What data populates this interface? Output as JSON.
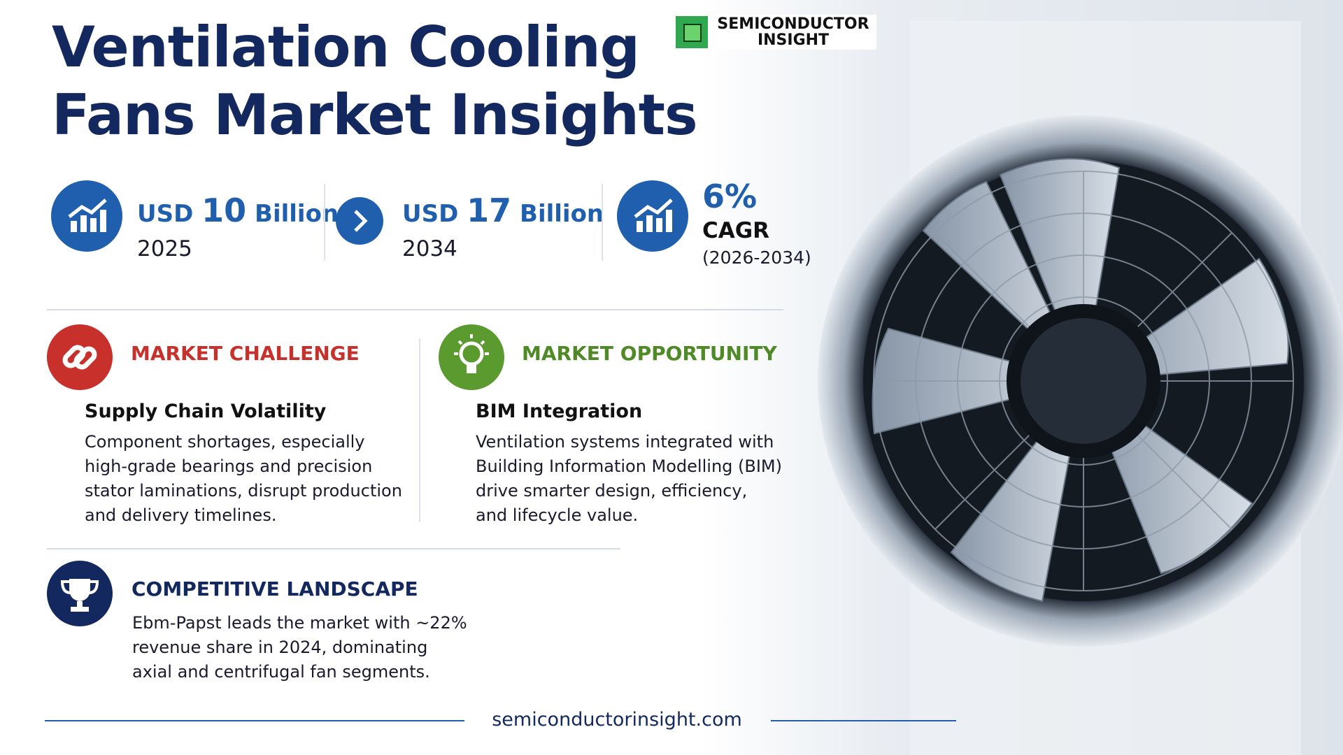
{
  "header": {
    "title_lines": [
      "Ventilation Cooling",
      "Fans Market Insights"
    ],
    "logo_lines": [
      "SEMICONDUCTOR",
      "INSIGHT"
    ]
  },
  "stats": [
    {
      "prefix": "USD",
      "amount": "10",
      "unit": "Billion",
      "year": "2025"
    },
    {
      "prefix": "USD",
      "amount": "17",
      "unit": "Billion",
      "year": "2034"
    },
    {
      "value": "6%",
      "label": "CAGR",
      "period": "(2026-2034)"
    }
  ],
  "sections": {
    "challenge": {
      "label": "MARKET CHALLENGE",
      "heading": "Supply Chain Volatility",
      "body_lines": [
        "Component shortages, especially",
        "high-grade bearings and precision",
        "stator laminations, disrupt production",
        "and delivery timelines."
      ]
    },
    "opportunity": {
      "label": "MARKET OPPORTUNITY",
      "heading": "BIM Integration",
      "body_lines": [
        "Ventilation systems integrated with",
        "Building Information Modelling (BIM)",
        "drive smarter design, efficiency,",
        "and lifecycle value."
      ]
    },
    "competitive": {
      "label": "COMPETITIVE LANDSCAPE",
      "body_lines": [
        "Ebm-Papst leads the market with ~22%",
        "revenue share in 2024, dominating",
        "axial and centrifugal fan segments."
      ]
    }
  },
  "footer": {
    "url": "semiconductorinsight.com"
  }
}
